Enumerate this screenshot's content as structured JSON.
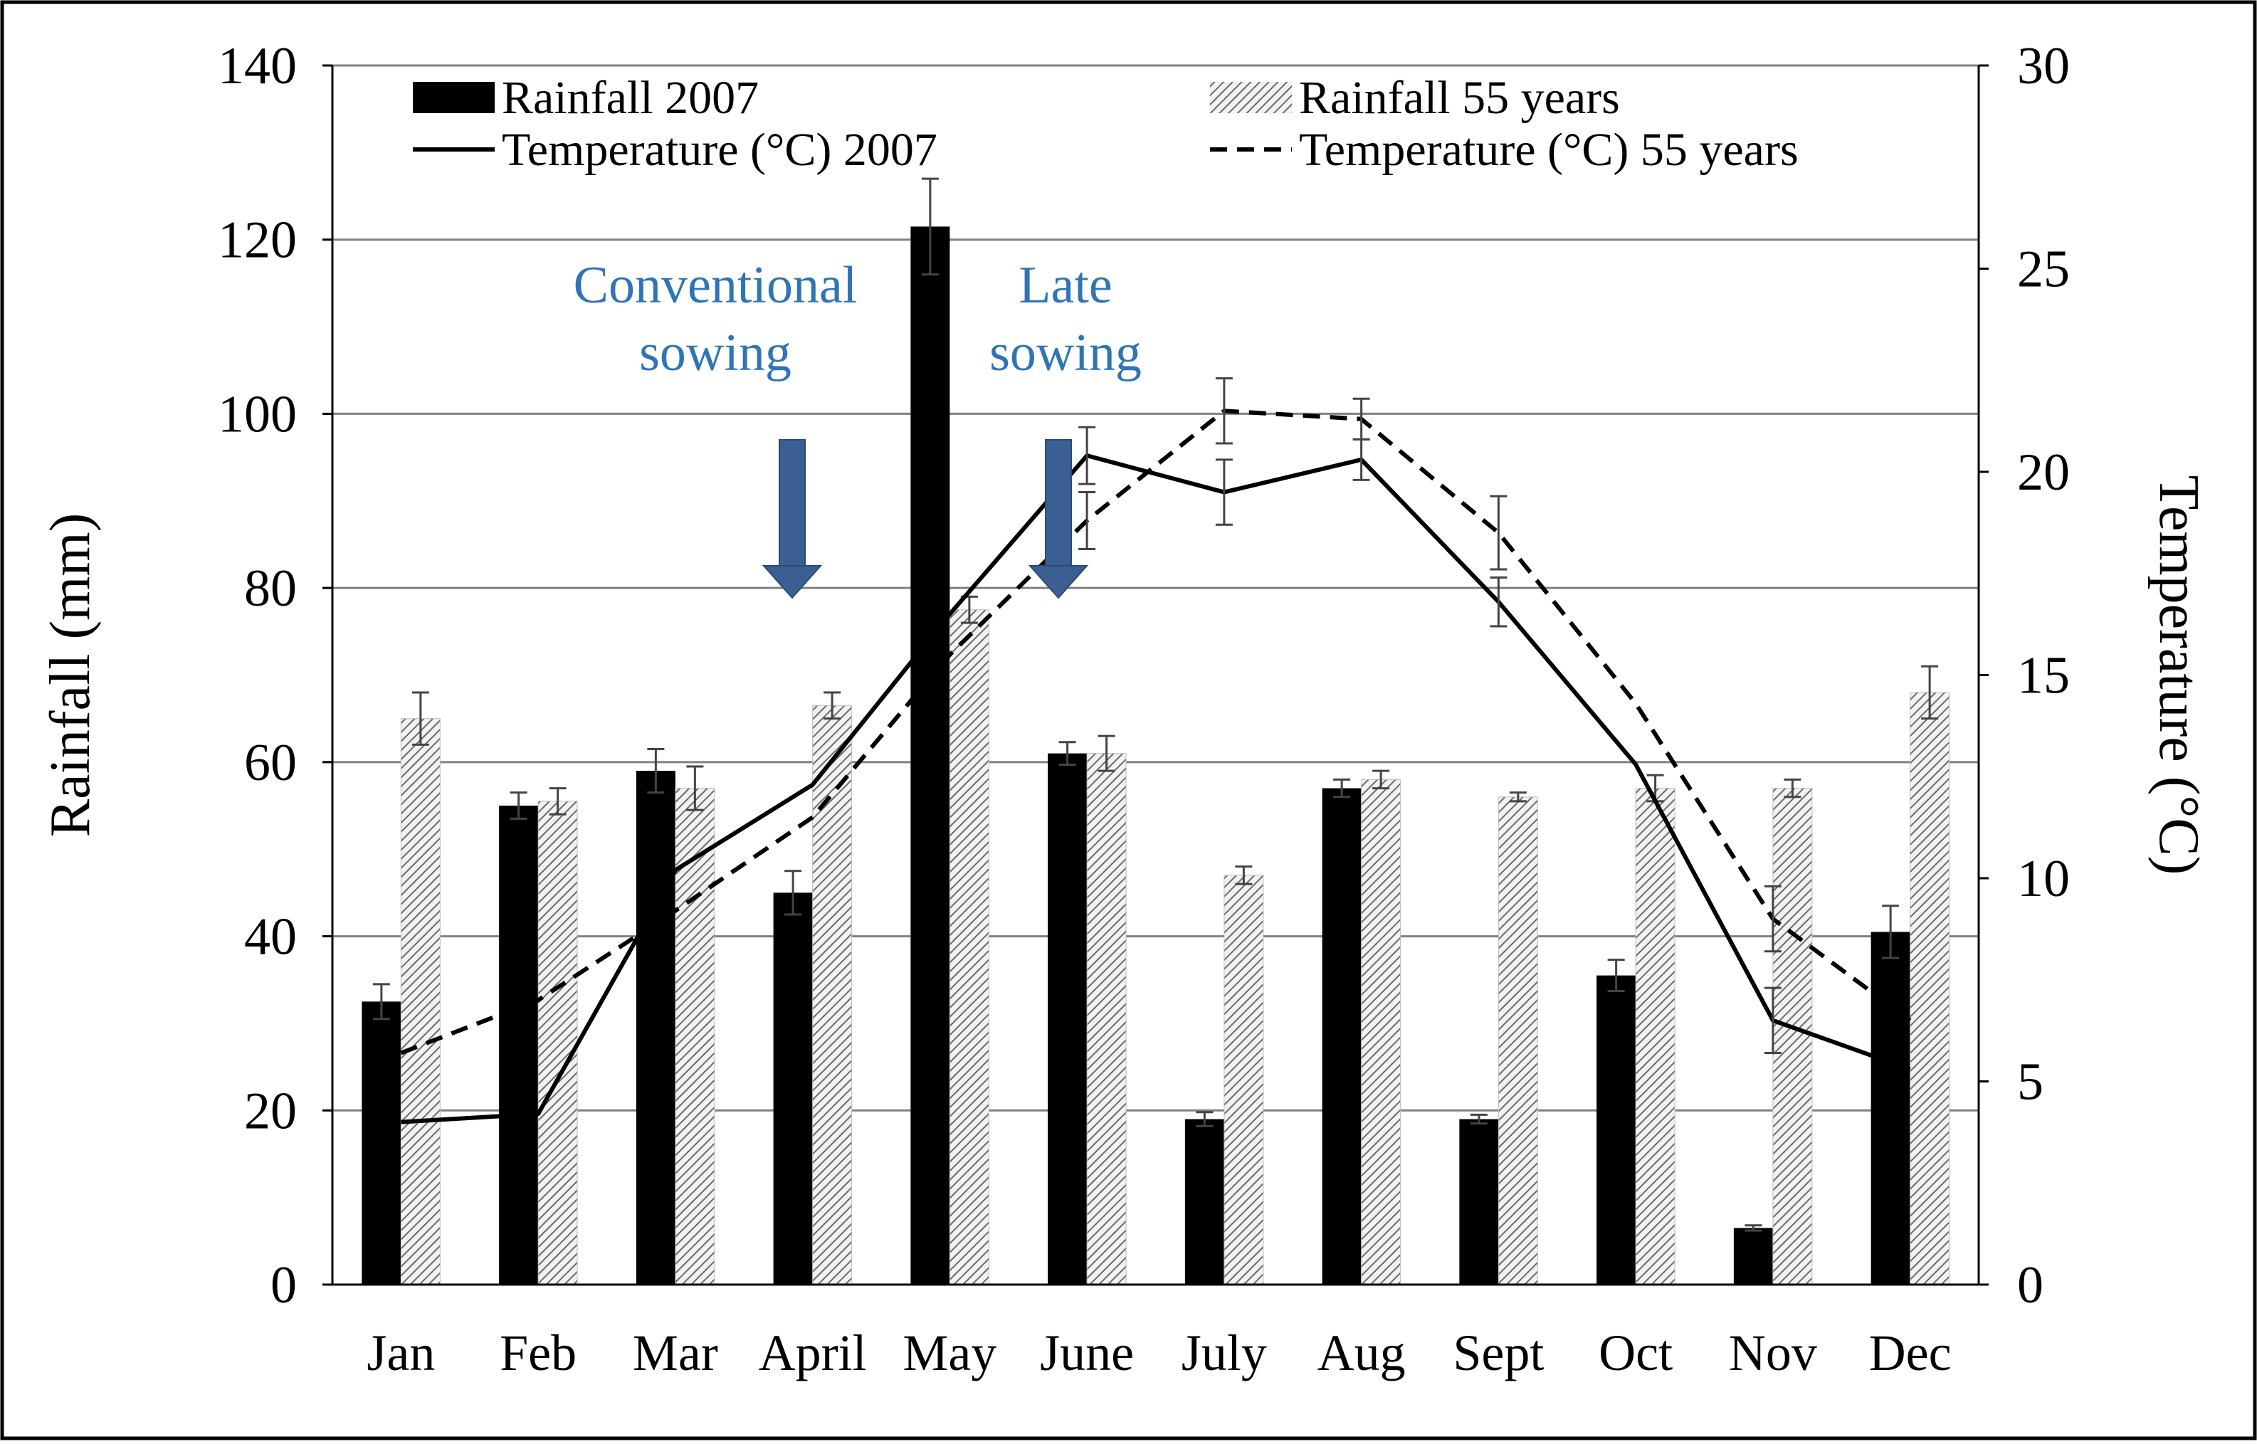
{
  "chart_data": {
    "type": "bar",
    "categories": [
      "Jan",
      "Feb",
      "Mar",
      "April",
      "May",
      "June",
      "July",
      "Aug",
      "Sept",
      "Oct",
      "Nov",
      "Dec"
    ],
    "ylabel": "Rainfall (mm)",
    "y2label": "Temperature (°C)",
    "ylim": [
      0,
      140
    ],
    "y2lim": [
      0,
      30
    ],
    "yticks": [
      0,
      20,
      40,
      60,
      80,
      100,
      120,
      140
    ],
    "y2ticks": [
      0,
      5,
      10,
      15,
      20,
      25,
      30
    ],
    "grid": true,
    "legend_position": "top",
    "series": [
      {
        "name": "Rainfall 2007",
        "kind": "bar",
        "axis": "left",
        "style": "solid-black",
        "values": [
          32.5,
          55,
          59,
          45,
          121.5,
          61,
          19,
          57,
          19,
          35.5,
          6.5,
          40.5
        ],
        "errors": [
          2,
          1.5,
          2.5,
          2.5,
          5.5,
          1.3,
          0.8,
          1,
          0.5,
          1.8,
          0.3,
          3
        ]
      },
      {
        "name": "Rainfall 55 years",
        "kind": "bar",
        "axis": "left",
        "style": "hatched-grey",
        "values": [
          65,
          55.5,
          57,
          66.5,
          77.5,
          61,
          47,
          58,
          56,
          57,
          57,
          68
        ],
        "errors": [
          3,
          1.5,
          2.5,
          1.5,
          1.5,
          2,
          1,
          1,
          0.5,
          1.5,
          1,
          3
        ]
      },
      {
        "name": "Temperature (°C) 2007",
        "kind": "line",
        "axis": "right",
        "style": "solid",
        "values": [
          4,
          4.2,
          10.2,
          12.3,
          16.5,
          20.4,
          19.5,
          20.3,
          16.8,
          12.8,
          6.5,
          5.3
        ],
        "errors": [
          0,
          0,
          0,
          0,
          0,
          0.7,
          0.8,
          0.5,
          0.6,
          0,
          0.8,
          0
        ]
      },
      {
        "name": "Temperature (°C) 55 years",
        "kind": "line",
        "axis": "right",
        "style": "dashed",
        "values": [
          5.7,
          7,
          9.2,
          11.5,
          15.5,
          18.8,
          21.5,
          21.3,
          18.5,
          14.3,
          9,
          6.5
        ],
        "errors": [
          0,
          0,
          0,
          0,
          0,
          0.7,
          0.8,
          0.5,
          0.9,
          0,
          0.8,
          0
        ]
      }
    ],
    "annotations": [
      {
        "text": [
          "Conventional",
          "sowing"
        ],
        "month": "April",
        "color": "#2f75b5"
      },
      {
        "text": [
          "Late",
          "sowing"
        ],
        "month": "June",
        "color": "#2f75b5"
      }
    ]
  }
}
